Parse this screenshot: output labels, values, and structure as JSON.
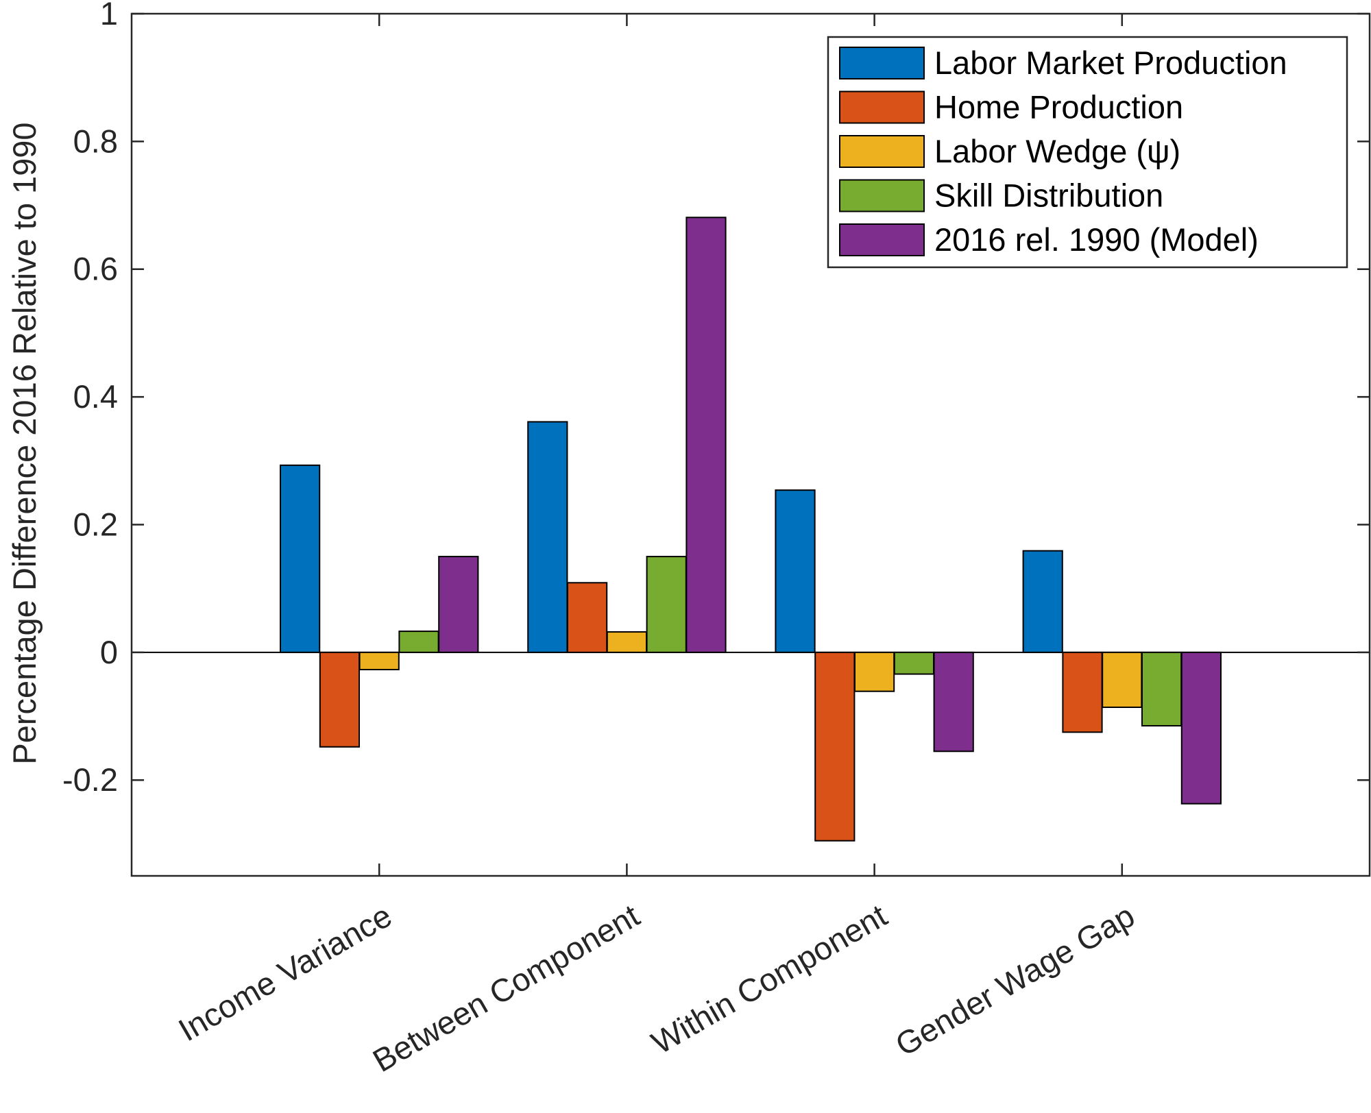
{
  "chart_data": {
    "type": "bar",
    "ylabel": "Percentage Difference 2016 Relative to 1990",
    "xlabel": "",
    "ylim": [
      -0.35,
      1
    ],
    "yticks": [
      "-0.2",
      "0",
      "0.2",
      "0.4",
      "0.6",
      "0.8",
      "1"
    ],
    "categories": [
      "Income Variance",
      "Between Component",
      "Within Component",
      "Gender Wage Gap"
    ],
    "legend_position": "top-right",
    "grid": false,
    "series": [
      {
        "name": "Labor Market Production",
        "color": "#0072BD",
        "values": [
          0.293,
          0.361,
          0.254,
          0.159
        ]
      },
      {
        "name": "Home Production",
        "color": "#D95319",
        "values": [
          -0.148,
          0.109,
          -0.295,
          -0.125
        ]
      },
      {
        "name": "Labor Wedge (ψ)",
        "color": "#EDB120",
        "values": [
          -0.027,
          0.032,
          -0.061,
          -0.086
        ]
      },
      {
        "name": "Skill Distribution",
        "color": "#77AC30",
        "values": [
          0.033,
          0.15,
          -0.034,
          -0.115
        ]
      },
      {
        "name": "2016 rel. 1990 (Model)",
        "color": "#7E2F8E",
        "values": [
          0.15,
          0.681,
          -0.155,
          -0.237
        ]
      }
    ]
  }
}
